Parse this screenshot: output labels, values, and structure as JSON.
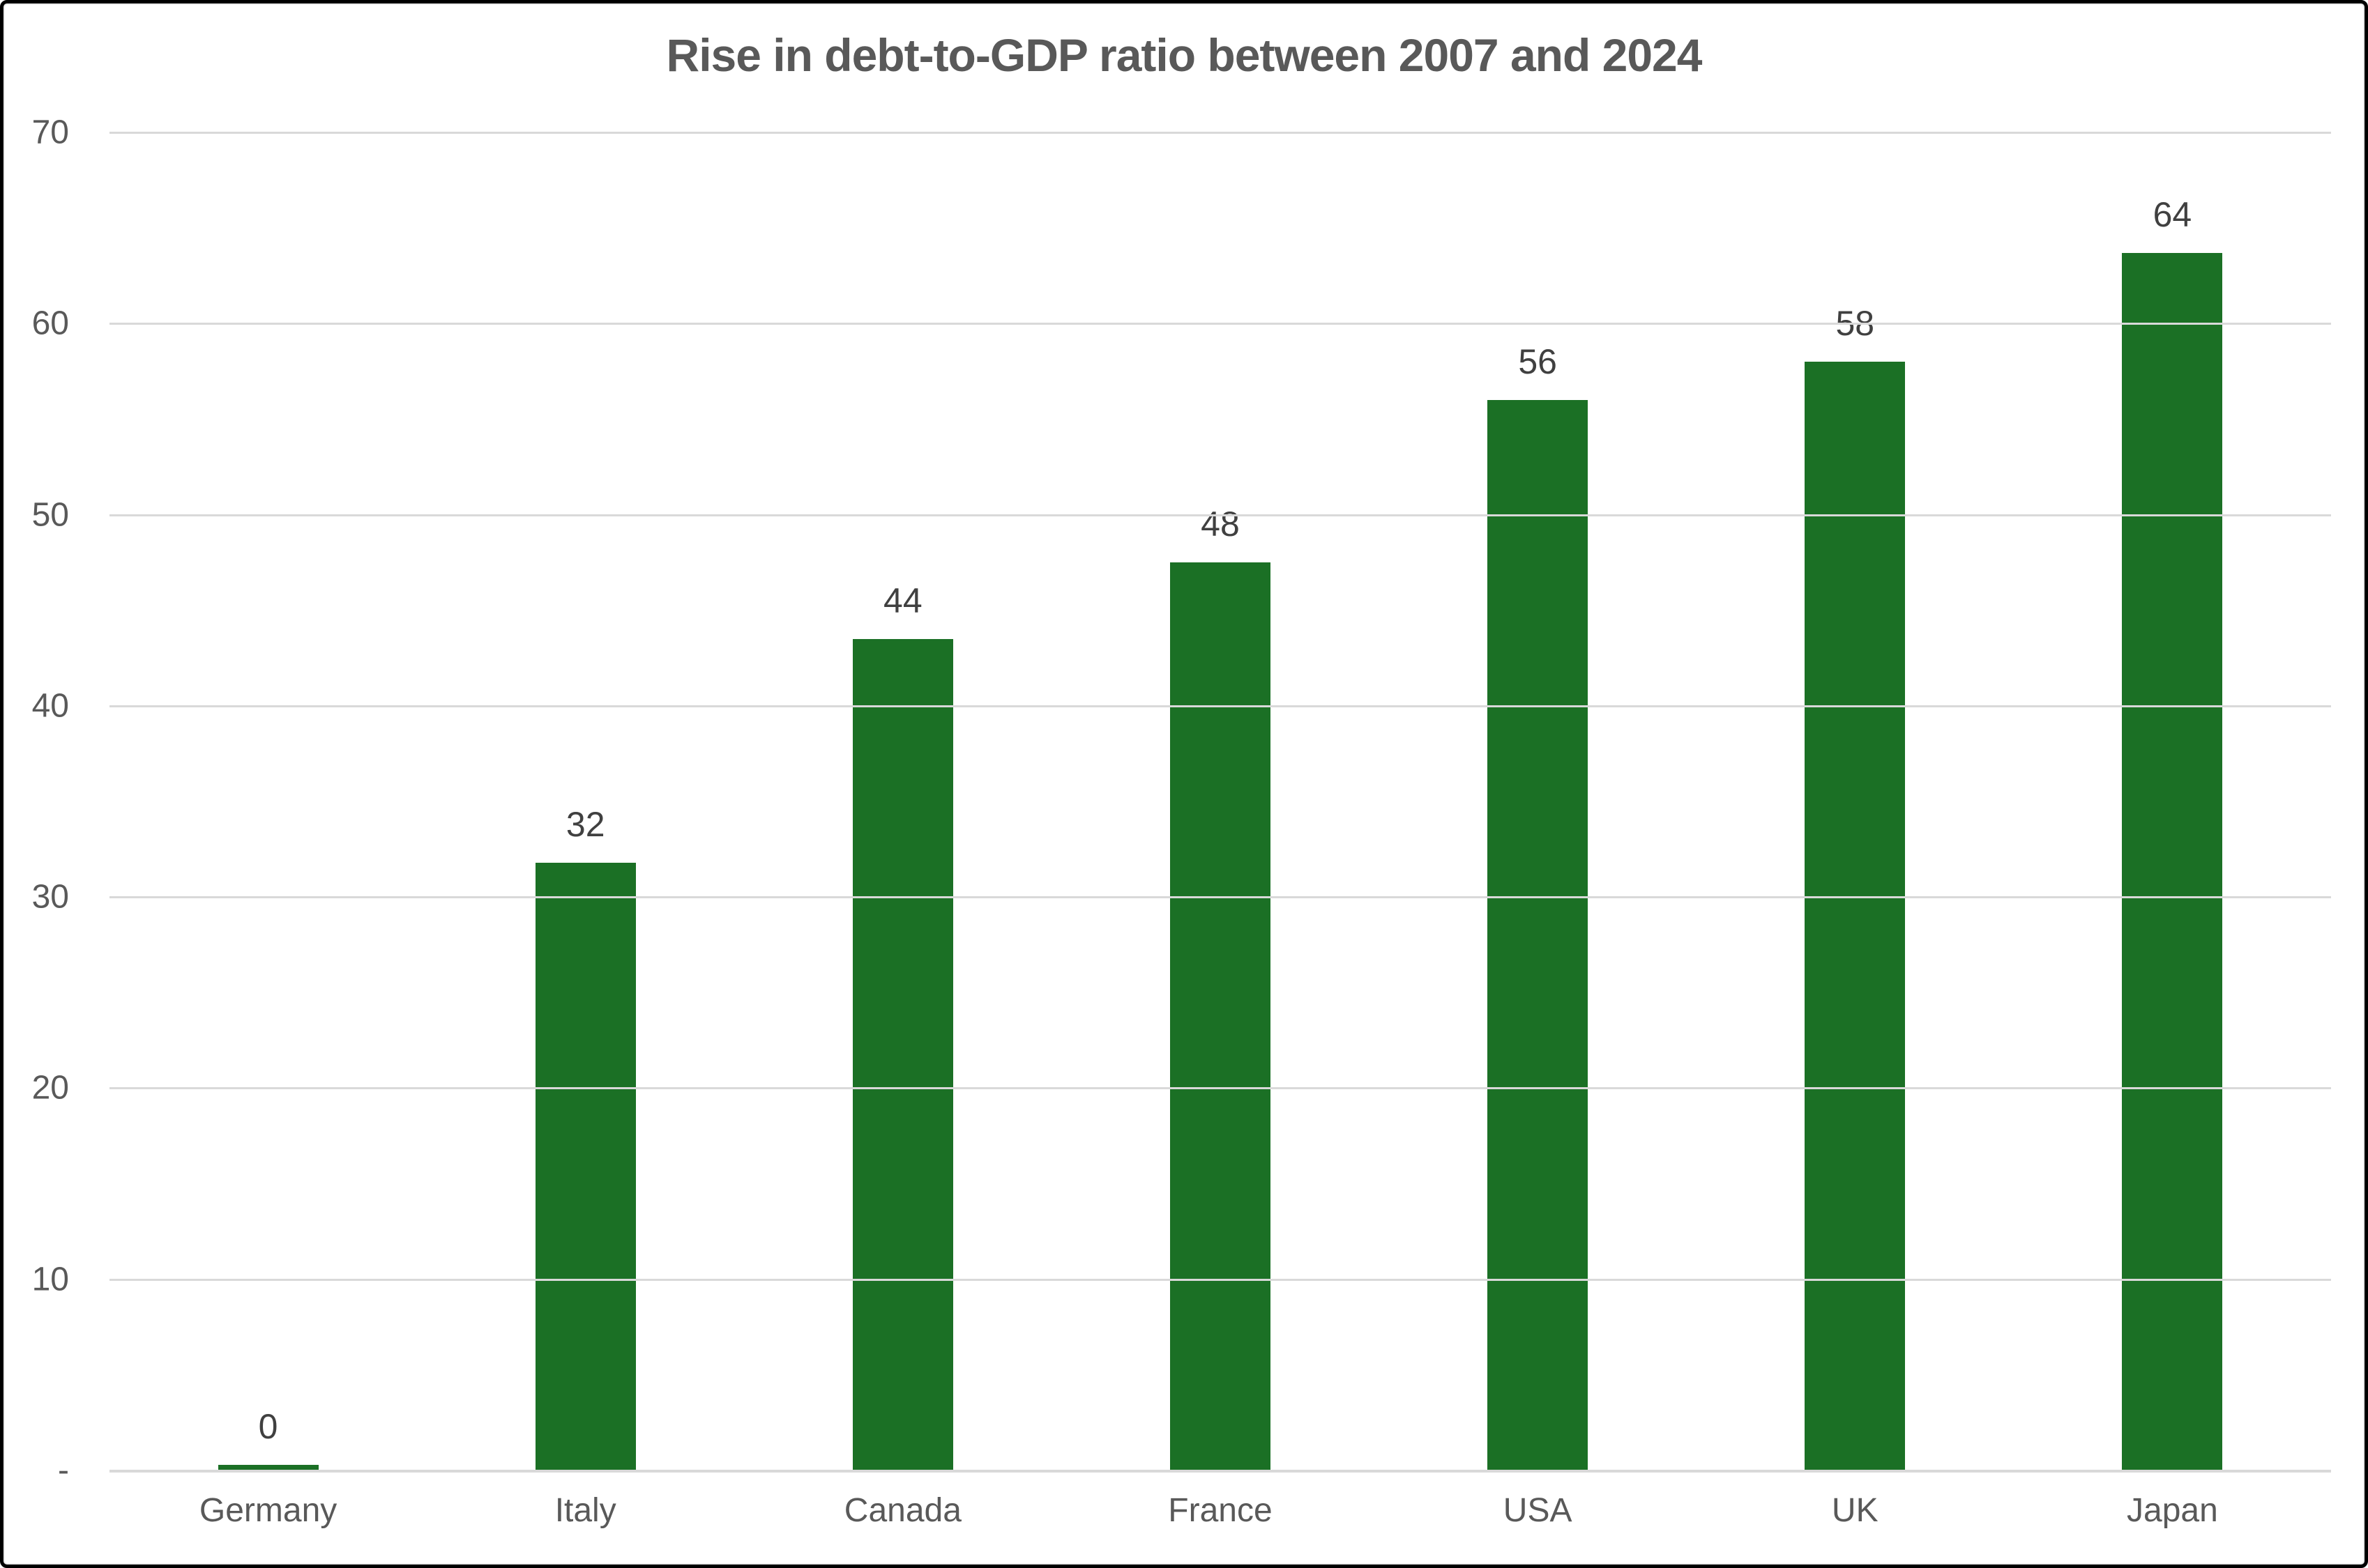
{
  "chart_data": {
    "type": "bar",
    "title": "Rise in debt-to-GDP ratio between 2007 and 2024",
    "categories": [
      "Germany",
      "Italy",
      "Canada",
      "France",
      "USA",
      "UK",
      "Japan"
    ],
    "values": [
      0.3,
      31.8,
      43.5,
      47.5,
      56.0,
      58.0,
      63.7
    ],
    "data_labels": [
      "0",
      "32",
      "44",
      "48",
      "56",
      "58",
      "64"
    ],
    "yticks": [
      {
        "value": 0,
        "label": "-"
      },
      {
        "value": 10,
        "label": "10"
      },
      {
        "value": 20,
        "label": "20"
      },
      {
        "value": 30,
        "label": "30"
      },
      {
        "value": 40,
        "label": "40"
      },
      {
        "value": 50,
        "label": "50"
      },
      {
        "value": 60,
        "label": "60"
      },
      {
        "value": 70,
        "label": "70"
      }
    ],
    "ylim": [
      0,
      70
    ],
    "xlabel": "",
    "ylabel": "",
    "grid": "horizontal",
    "legend": "none",
    "bar_color": "#1b7025",
    "title_color": "#595959",
    "axis_label_color": "#595959",
    "data_label_color": "#404040",
    "gridline_color": "#d9d9d9"
  }
}
